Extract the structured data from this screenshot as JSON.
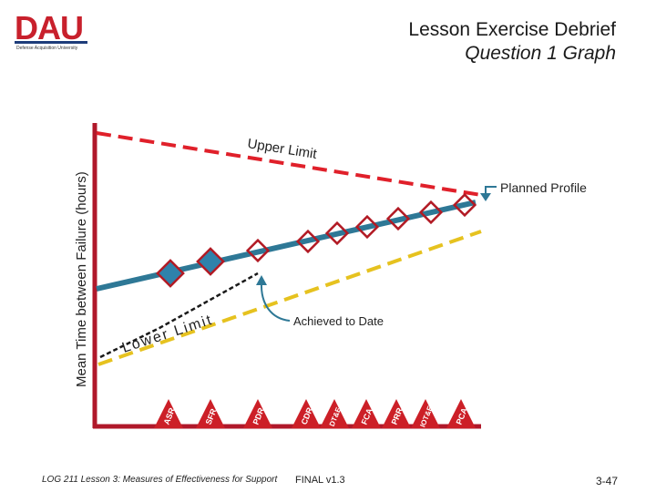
{
  "logo": {
    "text": "DAU",
    "subtitle": "Defense Acquisition University"
  },
  "title": {
    "main": "Lesson Exercise Debrief",
    "sub": "Question 1 Graph"
  },
  "axes": {
    "ylabel": "Mean Time between Failure (hours)"
  },
  "annotations": {
    "upper_limit": "Upper Limit",
    "lower_limit": "Lower Limit",
    "planned_profile": "Planned Profile",
    "achieved_to_date": "Achieved to Date"
  },
  "milestones": [
    "ASR",
    "SFR",
    "PDR",
    "CDR",
    "DT&E",
    "FCA",
    "PRR",
    "IOT&E",
    "PCA"
  ],
  "footer": {
    "course": "LOG 211 Lesson 3: Measures of Effectiveness for Support",
    "status": "FINAL v1.3",
    "page": "3-47"
  },
  "colors": {
    "upper_limit": "#e0202a",
    "lower_limit": "#e6c21f",
    "planned_profile": "#2e7896",
    "achieved": "#1a1a1a",
    "markers_filled": "#2f82ab",
    "markers_open_stroke": "#b21a24",
    "milestone_triangles": "#cc1f27",
    "axes": "#b0182a"
  }
}
